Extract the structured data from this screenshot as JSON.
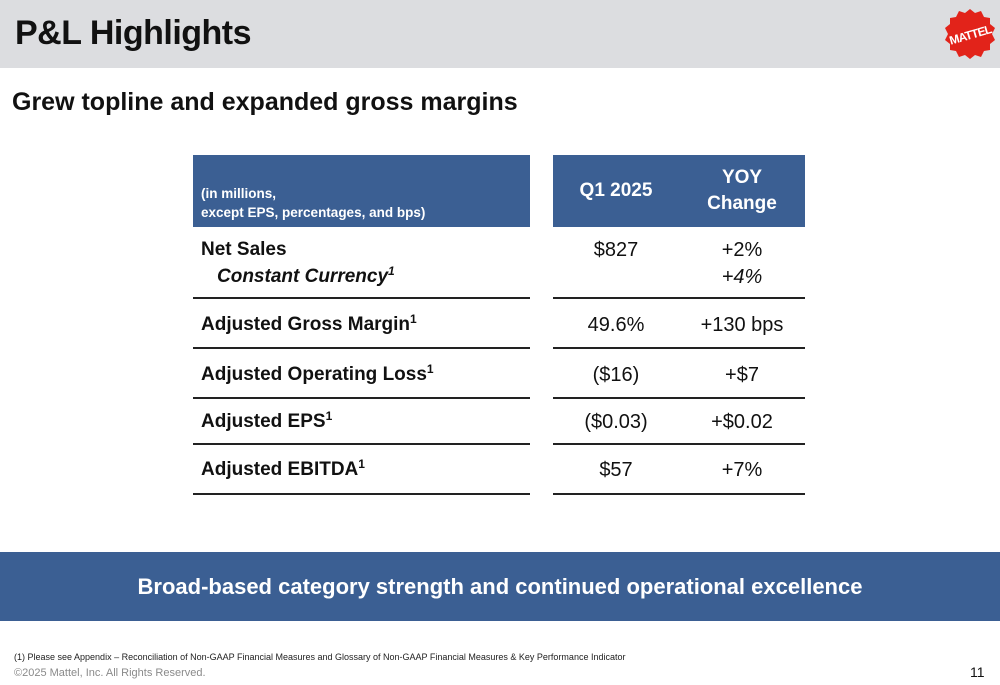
{
  "slide": {
    "title": "P&L Highlights",
    "subtitle": "Grew topline and expanded gross margins",
    "logo_text": "MATTEL"
  },
  "table": {
    "units_line1": "(in millions,",
    "units_line2": "except EPS, percentages, and bps)",
    "col_q": "Q1 2025",
    "col_yoy_line1": "YOY",
    "col_yoy_line2": "Change",
    "rows": [
      {
        "label": "Net Sales",
        "sublabel": "Constant Currency",
        "sub_footnote": "1",
        "q": "$827",
        "yoy": "+2%",
        "yoy_sub": "+4%"
      },
      {
        "label": "Adjusted Gross Margin",
        "footnote": "1",
        "q": "49.6%",
        "yoy": "+130 bps"
      },
      {
        "label": "Adjusted Operating Loss",
        "footnote": "1",
        "q": "($16)",
        "yoy": "+$7"
      },
      {
        "label": "Adjusted EPS",
        "footnote": "1",
        "q": "($0.03)",
        "yoy": "+$0.02"
      },
      {
        "label": "Adjusted EBITDA",
        "footnote": "1",
        "q": "$57",
        "yoy": "+7%"
      }
    ]
  },
  "banner": "Broad-based category strength and continued operational excellence",
  "footer": {
    "footnote": "(1)    Please see Appendix – Reconciliation of Non-GAAP Financial Measures and Glossary of Non-GAAP Financial Measures & Key Performance Indicator",
    "copyright": "©2025 Mattel, Inc.  All Rights Reserved.",
    "page_number": "11"
  },
  "colors": {
    "header_bg": "#dcdde0",
    "accent_blue": "#3b5f93",
    "logo_red": "#e2231a"
  }
}
